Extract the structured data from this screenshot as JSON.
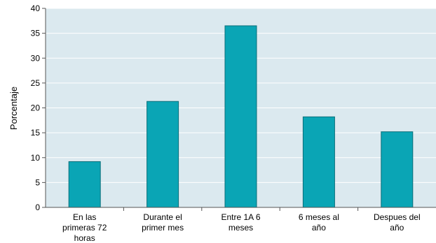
{
  "chart_data": {
    "type": "bar",
    "title": "",
    "xlabel": "",
    "ylabel": "Porcentaje",
    "categories": [
      [
        "En las",
        "primeras 72",
        "horas"
      ],
      [
        "Durante el",
        "primer mes"
      ],
      [
        "Entre 1A 6",
        "meses"
      ],
      [
        "6 meses al",
        "año"
      ],
      [
        "Despues del",
        "año"
      ]
    ],
    "values": [
      9.2,
      21.3,
      36.5,
      18.2,
      15.2
    ],
    "ylim": [
      0,
      40
    ],
    "yticks": [
      0,
      5,
      10,
      15,
      20,
      25,
      30,
      35,
      40
    ],
    "grid": true,
    "legend": "none",
    "colors": {
      "plot_background": "#dbe9ef",
      "bar_fill": "#0aa5b5",
      "bar_stroke": "#0a6f7a",
      "grid": "#ffffff",
      "axis": "#555555"
    }
  }
}
